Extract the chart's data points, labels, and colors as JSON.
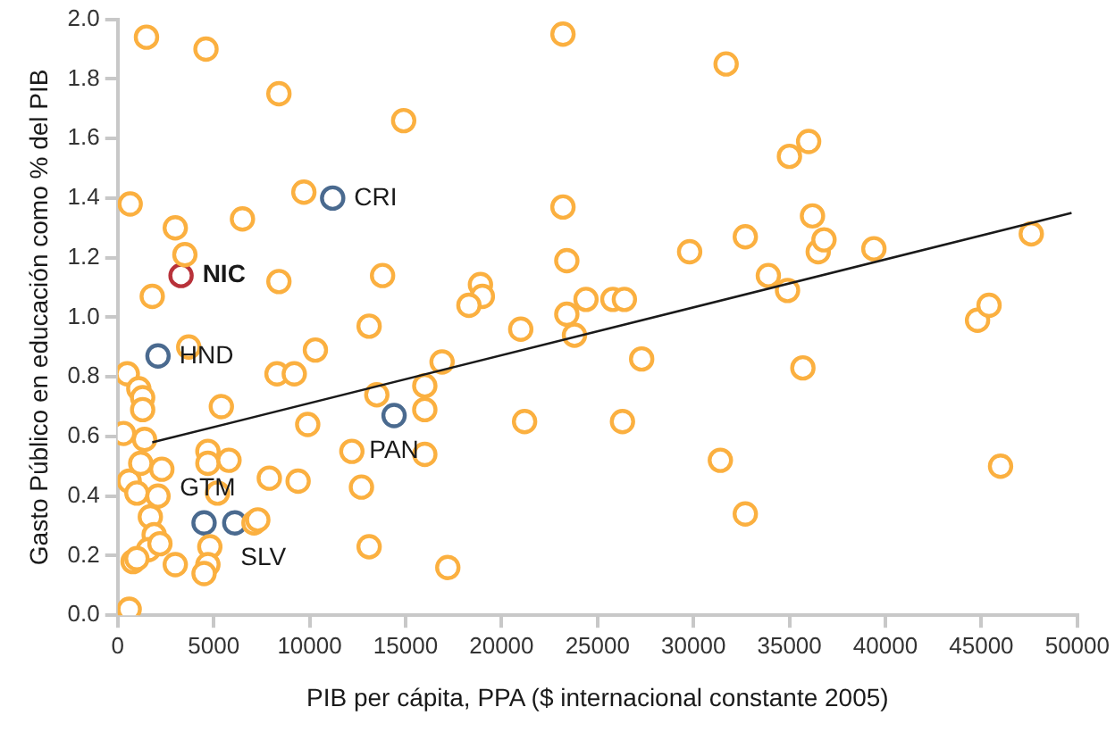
{
  "chart_data": {
    "type": "scatter",
    "xlabel": "PIB per cápita, PPA ($ internacional constante 2005)",
    "ylabel": "Gasto Público en educación como % del PIB",
    "xlim": [
      0,
      50000
    ],
    "xticks": [
      0,
      5000,
      10000,
      15000,
      20000,
      25000,
      30000,
      35000,
      40000,
      45000,
      50000
    ],
    "ylim": [
      0,
      2.0
    ],
    "yticks": [
      {
        "value": 0,
        "label": "0.0"
      },
      {
        "value": 0.2,
        "label": "0.2"
      },
      {
        "value": 0.4,
        "label": "0.4"
      },
      {
        "value": 0.6,
        "label": "0.6"
      },
      {
        "value": 0.8,
        "label": "0.8"
      },
      {
        "value": 1.0,
        "label": "1.0"
      },
      {
        "value": 1.2,
        "label": "1.2"
      },
      {
        "value": 1.4,
        "label": "1.4"
      },
      {
        "value": 1.6,
        "label": "1.6"
      },
      {
        "value": 1.8,
        "label": "1.8"
      },
      {
        "value": 2.0,
        "label": "2.0"
      }
    ],
    "grid": false,
    "legend": false,
    "marker": "circle",
    "series": [
      {
        "type": "line",
        "color": "#1a1a1a",
        "marker": "none",
        "x": [
          1800,
          49700
        ],
        "values": [
          0.58,
          1.35
        ]
      },
      {
        "color": "#fbb040",
        "x": [
          1500,
          4600,
          8400,
          14900,
          650,
          9700,
          3000,
          6500,
          3500,
          8400,
          13800,
          1800,
          13100,
          3700,
          10300,
          500,
          1100,
          1300,
          8300,
          9200,
          13500,
          16000,
          16900,
          16000,
          1300,
          5400,
          300,
          1400,
          9900,
          4700,
          4700,
          5800,
          12200,
          16000,
          600,
          1000,
          2300,
          1200,
          7900,
          9400,
          12700,
          1700,
          2100,
          5200,
          7100,
          7300,
          1900,
          1600,
          2200,
          4800,
          800,
          1000,
          3000,
          4700,
          4500,
          13100,
          17200,
          600,
          23200,
          31700,
          23200,
          23400,
          18900,
          19000,
          18300,
          21000,
          23400,
          24400,
          25800,
          26400,
          23800,
          27300,
          29800,
          32700,
          33900,
          21200,
          26300,
          31400,
          32700,
          35000,
          36000,
          36200,
          36500,
          36800,
          39400,
          34900,
          35700,
          44800,
          45400,
          47600,
          46000
        ],
        "values": [
          1.94,
          1.9,
          1.75,
          1.66,
          1.38,
          1.42,
          1.3,
          1.33,
          1.21,
          1.12,
          1.14,
          1.07,
          0.97,
          0.9,
          0.89,
          0.81,
          0.76,
          0.73,
          0.81,
          0.81,
          0.74,
          0.69,
          0.85,
          0.77,
          0.69,
          0.7,
          0.61,
          0.59,
          0.64,
          0.55,
          0.51,
          0.52,
          0.55,
          0.54,
          0.45,
          0.41,
          0.49,
          0.51,
          0.46,
          0.45,
          0.43,
          0.33,
          0.4,
          0.41,
          0.31,
          0.32,
          0.27,
          0.22,
          0.24,
          0.23,
          0.18,
          0.19,
          0.17,
          0.17,
          0.14,
          0.23,
          0.16,
          0.02,
          1.95,
          1.85,
          1.37,
          1.19,
          1.11,
          1.07,
          1.04,
          0.96,
          1.01,
          1.06,
          1.06,
          1.06,
          0.94,
          0.86,
          1.22,
          1.27,
          1.14,
          0.65,
          0.65,
          0.52,
          0.34,
          1.54,
          1.59,
          1.34,
          1.22,
          1.26,
          1.23,
          1.09,
          0.83,
          0.99,
          1.04,
          1.28,
          0.5
        ]
      },
      {
        "color": "#4a6a8f",
        "x": [
          11200,
          2100,
          14400,
          4500,
          6100
        ],
        "values": [
          1.4,
          0.87,
          0.67,
          0.31,
          0.31
        ]
      },
      {
        "color": "#b8323a",
        "x": [
          3300
        ],
        "values": [
          1.14
        ]
      }
    ],
    "annotations": [
      {
        "text": "CRI",
        "x": 11200,
        "y": 1.4
      },
      {
        "text": "NIC",
        "x": 3300,
        "y": 1.14
      },
      {
        "text": "HND",
        "x": 2100,
        "y": 0.87
      },
      {
        "text": "PAN",
        "x": 14400,
        "y": 0.67
      },
      {
        "text": "GTM",
        "x": 4500,
        "y": 0.31
      },
      {
        "text": "SLV",
        "x": 6100,
        "y": 0.31
      }
    ]
  }
}
